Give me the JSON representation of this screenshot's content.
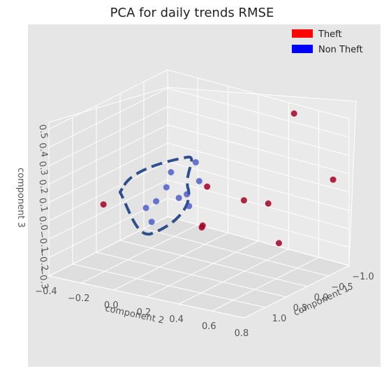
{
  "chart_data": {
    "type": "scatter",
    "projection": "3d",
    "title": "PCA for daily trends RMSE",
    "xlabel": "component 1",
    "ylabel": "component 2",
    "zlabel": "component 3",
    "x_ticks": [
      "1.0",
      "0.5",
      "0.0",
      "−0.5",
      "−1.0"
    ],
    "y_ticks": [
      "−0.4",
      "−0.2",
      "0.0",
      "0.2",
      "0.4",
      "0.6",
      "0.8"
    ],
    "z_ticks": [
      "0.5",
      "0.4",
      "0.3",
      "0.2",
      "0.1",
      "0.0",
      "−0.1",
      "−0.2",
      "−0.3"
    ],
    "xlim": [
      1.5,
      -1.0
    ],
    "ylim": [
      -0.4,
      0.8
    ],
    "zlim": [
      -0.3,
      0.5
    ],
    "legend": {
      "placement": "top-right",
      "entries": [
        {
          "label": "Theft",
          "color": "#ff0000"
        },
        {
          "label": "Non Theft",
          "color": "#0000ff"
        }
      ]
    },
    "series": [
      {
        "name": "Theft",
        "color": "#a50026",
        "points": [
          {
            "x": -0.6,
            "y": 0.55,
            "z": 0.52
          },
          {
            "x": -0.8,
            "y": 0.75,
            "z": 0.18
          },
          {
            "x": 0.3,
            "y": 0.7,
            "z": -0.05
          },
          {
            "x": 0.2,
            "y": 0.45,
            "z": 0.12
          },
          {
            "x": 0.0,
            "y": 0.55,
            "z": 0.1
          },
          {
            "x": 0.5,
            "y": 0.3,
            "z": 0.2
          },
          {
            "x": 0.6,
            "y": 0.3,
            "z": 0.0
          },
          {
            "x": 0.55,
            "y": 0.28,
            "z": -0.02
          },
          {
            "x": 1.2,
            "y": -0.15,
            "z": 0.1
          }
        ]
      },
      {
        "name": "Non Theft",
        "color": "#3b4cc0",
        "points": [
          {
            "x": 0.4,
            "y": 0.2,
            "z": 0.3
          },
          {
            "x": 0.6,
            "y": 0.1,
            "z": 0.25
          },
          {
            "x": 0.5,
            "y": 0.25,
            "z": 0.22
          },
          {
            "x": 0.7,
            "y": 0.1,
            "z": 0.18
          },
          {
            "x": 0.6,
            "y": 0.2,
            "z": 0.15
          },
          {
            "x": 0.75,
            "y": 0.05,
            "z": 0.1
          },
          {
            "x": 0.8,
            "y": 0.0,
            "z": 0.06
          },
          {
            "x": 0.85,
            "y": 0.05,
            "z": 0.0
          },
          {
            "x": 0.55,
            "y": 0.2,
            "z": 0.08
          },
          {
            "x": 0.6,
            "y": 0.15,
            "z": 0.12
          }
        ]
      }
    ],
    "annotation": {
      "type": "dashed-outline",
      "color": "#2d4f8b",
      "encloses": "Non Theft cluster"
    }
  }
}
